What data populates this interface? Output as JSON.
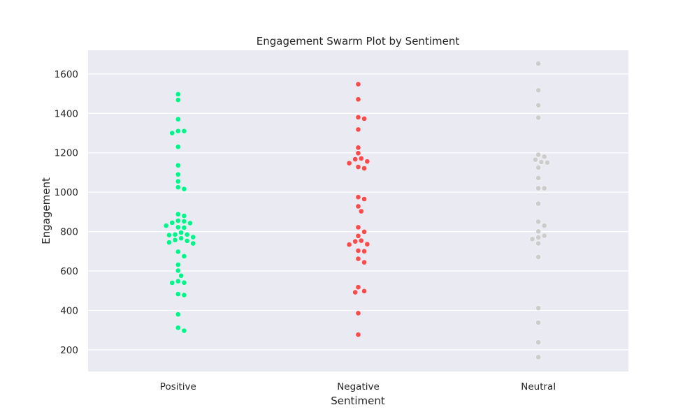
{
  "chart_data": {
    "type": "scatter",
    "subtype": "swarm",
    "title": "Engagement Swarm Plot by Sentiment",
    "xlabel": "Sentiment",
    "ylabel": "Engagement",
    "ylim": [
      90,
      1720
    ],
    "yticks": [
      200,
      400,
      600,
      800,
      1000,
      1200,
      1400,
      1600
    ],
    "grid": true,
    "legend": "none",
    "colors": {
      "background": "#eaeaf2",
      "grid": "#ffffff"
    },
    "categories": [
      "Positive",
      "Negative",
      "Neutral"
    ],
    "series": [
      {
        "category": "Positive",
        "color": "#00f58a",
        "values": [
          1497,
          1468,
          1370,
          1310,
          1300,
          1310,
          1230,
          1136,
          1090,
          1055,
          1025,
          1016,
          888,
          880,
          855,
          852,
          845,
          843,
          830,
          822,
          820,
          795,
          785,
          785,
          782,
          772,
          766,
          757,
          753,
          745,
          740,
          698,
          675,
          632,
          602,
          576,
          548,
          541,
          540,
          483,
          478,
          380,
          312,
          297
        ]
      },
      {
        "category": "Negative",
        "color": "#f84b4b",
        "values": [
          1548,
          1471,
          1380,
          1373,
          1318,
          1226,
          1198,
          1171,
          1167,
          1156,
          1147,
          1128,
          1121,
          975,
          965,
          928,
          903,
          822,
          799,
          778,
          754,
          750,
          736,
          734,
          703,
          700,
          662,
          644,
          518,
          498,
          492,
          386,
          277
        ]
      },
      {
        "category": "Neutral",
        "color": "#cccccc",
        "values": [
          1653,
          1517,
          1441,
          1378,
          1190,
          1180,
          1165,
          1153,
          1150,
          1125,
          1072,
          1020,
          1020,
          942,
          850,
          830,
          801,
          779,
          770,
          762,
          740,
          671,
          412,
          338,
          238,
          163
        ]
      }
    ]
  }
}
